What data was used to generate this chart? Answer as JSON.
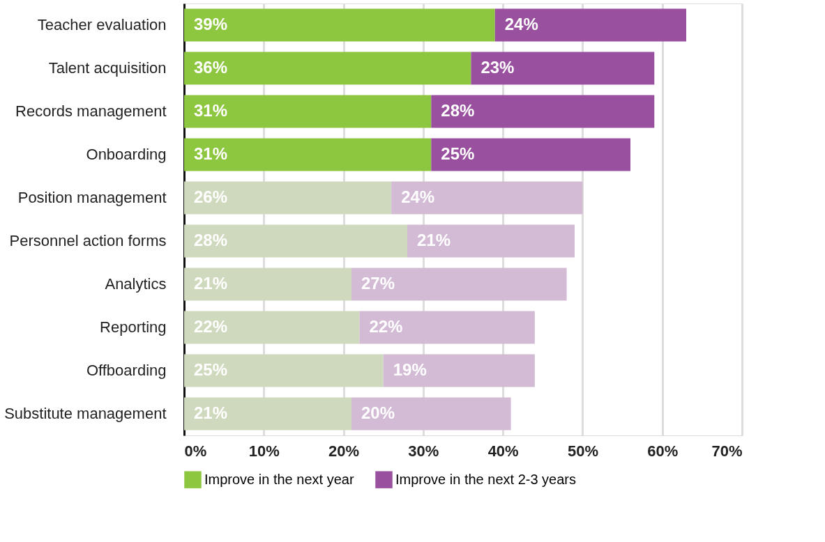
{
  "chart_data": {
    "type": "bar",
    "orientation": "horizontal",
    "stacked": true,
    "categories": [
      "Teacher evaluation",
      "Talent acquisition",
      "Records management",
      "Onboarding",
      "Position management",
      "Personnel action forms",
      "Analytics",
      "Reporting",
      "Offboarding",
      "Substitute management"
    ],
    "series": [
      {
        "name": "Improve in the next year",
        "color": "#8dc63f",
        "colors": [
          "#8dc63f",
          "#8dc63f",
          "#8dc63f",
          "#8dc63f",
          "#cfd9bd",
          "#cfd9bd",
          "#cfd9bd",
          "#cfd9bd",
          "#cfd9bd",
          "#cfd9bd"
        ],
        "values": [
          39,
          36,
          31,
          31,
          26,
          28,
          21,
          22,
          25,
          21
        ],
        "value_labels": [
          "39%",
          "36%",
          "31%",
          "31%",
          "26%",
          "28%",
          "21%",
          "22%",
          "25%",
          "21%"
        ]
      },
      {
        "name": "Improve in the next 2-3 years",
        "color": "#99509f",
        "colors": [
          "#99509f",
          "#99509f",
          "#99509f",
          "#99509f",
          "#d3bbd6",
          "#d3bbd6",
          "#d3bbd6",
          "#d3bbd6",
          "#d3bbd6",
          "#d3bbd6"
        ],
        "values": [
          24,
          23,
          28,
          25,
          24,
          21,
          27,
          22,
          19,
          20
        ],
        "value_labels": [
          "24%",
          "23%",
          "28%",
          "25%",
          "24%",
          "21%",
          "27%",
          "22%",
          "19%",
          "20%"
        ]
      }
    ],
    "xlim": [
      0,
      70
    ],
    "xticks": [
      {
        "value": 0,
        "label": "0%"
      },
      {
        "value": 10,
        "label": "10%"
      },
      {
        "value": 20,
        "label": "20%"
      },
      {
        "value": 30,
        "label": "30%"
      },
      {
        "value": 40,
        "label": "40%"
      },
      {
        "value": 50,
        "label": "50%"
      },
      {
        "value": 60,
        "label": "60%"
      },
      {
        "value": 70,
        "label": "70%"
      }
    ],
    "grid": "x",
    "legend": "bottom"
  }
}
